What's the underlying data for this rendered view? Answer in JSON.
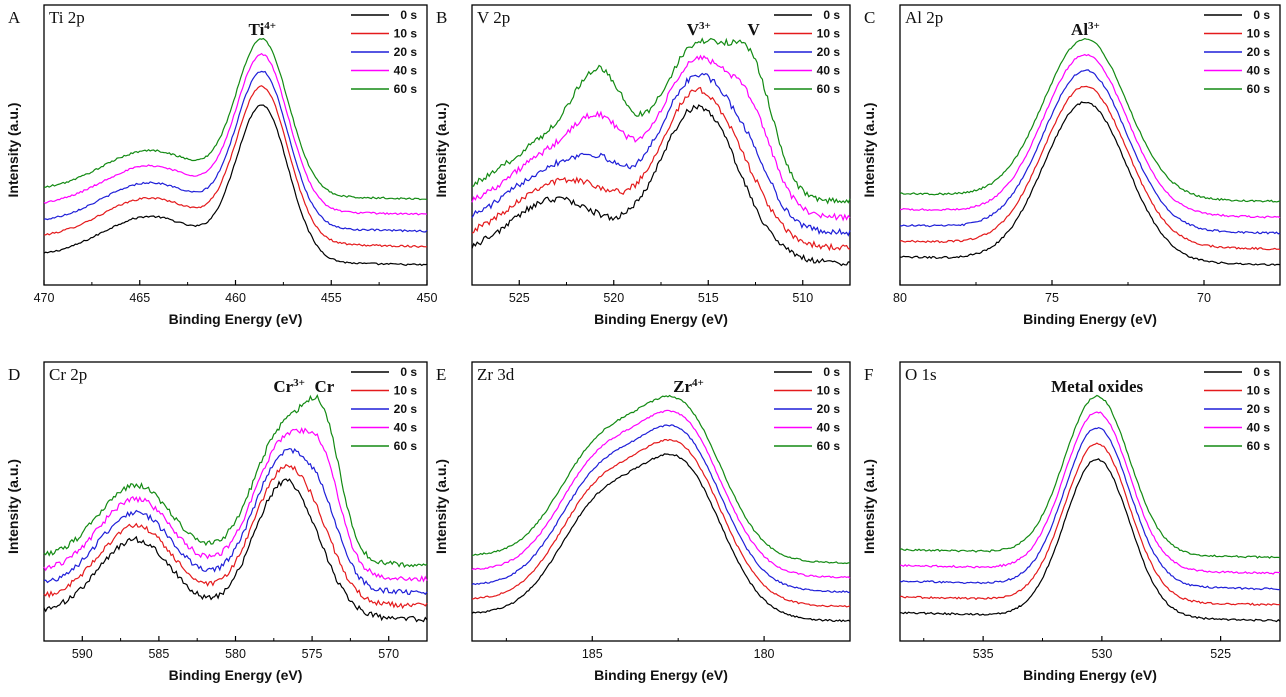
{
  "colors": {
    "0 s": "#000000",
    "10 s": "#e41a1c",
    "20 s": "#1f1fd8",
    "40 s": "#ff00ff",
    "60 s": "#138a13",
    "frame": "#000000",
    "background": "#ffffff"
  },
  "chart_data": [
    {
      "type": "line",
      "panel_letter": "A",
      "title": "Ti 2p",
      "xlabel": "Binding Energy (eV)",
      "ylabel": "Intensity (a.u.)",
      "x_reversed": true,
      "xlim": [
        470,
        450
      ],
      "x_ticks": [
        470,
        465,
        460,
        455,
        450
      ],
      "peak_labels": [
        {
          "base": "Ti",
          "sup": "4+",
          "x": 458.6
        }
      ],
      "legend_position": "top-right",
      "legend": [
        "0 s",
        "10 s",
        "20 s",
        "40 s",
        "60 s"
      ],
      "peaks": [
        {
          "center": 464.4,
          "width": 1.6,
          "height": 0.28
        },
        {
          "center": 458.6,
          "width": 0.85,
          "height": 1.0
        }
      ],
      "series": [
        {
          "name": "0 s",
          "offset": 0.0,
          "scale": 1.0
        },
        {
          "name": "10 s",
          "offset": 0.12,
          "scale": 1.0
        },
        {
          "name": "20 s",
          "offset": 0.22,
          "scale": 1.0
        },
        {
          "name": "40 s",
          "offset": 0.33,
          "scale": 1.0
        },
        {
          "name": "60 s",
          "offset": 0.43,
          "scale": 1.0
        }
      ]
    },
    {
      "type": "line",
      "panel_letter": "B",
      "title": "V 2p",
      "xlabel": "Binding Energy (eV)",
      "ylabel": "Intensity (a.u.)",
      "x_reversed": true,
      "xlim": [
        527.5,
        507.5
      ],
      "x_ticks": [
        525,
        520,
        515,
        510
      ],
      "peak_labels": [
        {
          "base": "V",
          "sup": "3+",
          "x": 515.5
        },
        {
          "base": "V",
          "sup": "",
          "x": 512.6
        }
      ],
      "legend_position": "top-right",
      "legend": [
        "0 s",
        "10 s",
        "20 s",
        "40 s",
        "60 s"
      ],
      "peaks": [
        {
          "center": 523.0,
          "width": 1.5,
          "height": 0.38
        },
        {
          "center": 515.5,
          "width": 1.3,
          "height": 1.0
        },
        {
          "center": 512.6,
          "width": 0.7,
          "height": 0.0
        },
        {
          "center": 520.7,
          "width": 0.8,
          "height": 0.0
        }
      ],
      "series": [
        {
          "name": "0 s",
          "offset": 0.0,
          "scale": 1.0,
          "metal": 0.0
        },
        {
          "name": "10 s",
          "offset": 0.1,
          "scale": 1.0,
          "metal": 0.08
        },
        {
          "name": "20 s",
          "offset": 0.2,
          "scale": 1.0,
          "metal": 0.18
        },
        {
          "name": "40 s",
          "offset": 0.3,
          "scale": 1.0,
          "metal": 0.35
        },
        {
          "name": "60 s",
          "offset": 0.4,
          "scale": 1.0,
          "metal": 0.55
        }
      ]
    },
    {
      "type": "line",
      "panel_letter": "C",
      "title": "Al 2p",
      "xlabel": "Binding Energy (eV)",
      "ylabel": "Intensity (a.u.)",
      "x_reversed": true,
      "xlim": [
        80,
        67.5
      ],
      "x_ticks": [
        80,
        75,
        70
      ],
      "peak_labels": [
        {
          "base": "Al",
          "sup": "3+",
          "x": 73.9
        }
      ],
      "legend_position": "top-right",
      "legend": [
        "0 s",
        "10 s",
        "20 s",
        "40 s",
        "60 s"
      ],
      "peaks": [
        {
          "center": 73.9,
          "width": 0.85,
          "height": 1.0
        }
      ],
      "series": [
        {
          "name": "0 s",
          "offset": 0.0,
          "scale": 1.0
        },
        {
          "name": "10 s",
          "offset": 0.1,
          "scale": 1.0
        },
        {
          "name": "20 s",
          "offset": 0.2,
          "scale": 1.0
        },
        {
          "name": "40 s",
          "offset": 0.3,
          "scale": 1.0
        },
        {
          "name": "60 s",
          "offset": 0.4,
          "scale": 1.0
        }
      ]
    },
    {
      "type": "line",
      "panel_letter": "D",
      "title": "Cr 2p",
      "xlabel": "Binding Energy (eV)",
      "ylabel": "Intensity (a.u.)",
      "x_reversed": true,
      "xlim": [
        592.5,
        567.5
      ],
      "x_ticks": [
        590,
        585,
        580,
        575,
        570
      ],
      "peak_labels": [
        {
          "base": "Cr",
          "sup": "3+",
          "x": 576.5
        },
        {
          "base": "Cr",
          "sup": "",
          "x": 574.2
        }
      ],
      "legend_position": "top-right",
      "legend": [
        "0 s",
        "10 s",
        "20 s",
        "40 s",
        "60 s"
      ],
      "peaks": [
        {
          "center": 586.5,
          "width": 1.5,
          "height": 0.55
        },
        {
          "center": 576.7,
          "width": 1.3,
          "height": 1.0
        },
        {
          "center": 574.2,
          "width": 0.7,
          "height": 0.0
        }
      ],
      "series": [
        {
          "name": "0 s",
          "offset": 0.0,
          "scale": 1.0,
          "metal": 0.0
        },
        {
          "name": "10 s",
          "offset": 0.1,
          "scale": 1.0,
          "metal": 0.1
        },
        {
          "name": "20 s",
          "offset": 0.2,
          "scale": 1.0,
          "metal": 0.25
        },
        {
          "name": "40 s",
          "offset": 0.3,
          "scale": 1.0,
          "metal": 0.45
        },
        {
          "name": "60 s",
          "offset": 0.4,
          "scale": 1.0,
          "metal": 0.65
        }
      ]
    },
    {
      "type": "line",
      "panel_letter": "E",
      "title": "Zr 3d",
      "xlabel": "Binding Energy (eV)",
      "ylabel": "Intensity (a.u.)",
      "x_reversed": true,
      "xlim": [
        188.5,
        177.5
      ],
      "x_ticks": [
        185,
        180
      ],
      "peak_labels": [
        {
          "base": "Zr",
          "sup": "4+",
          "x": 182.2
        }
      ],
      "legend_position": "top-right",
      "legend": [
        "0 s",
        "10 s",
        "20 s",
        "40 s",
        "60 s"
      ],
      "peaks": [
        {
          "center": 184.8,
          "width": 0.75,
          "height": 0.72
        },
        {
          "center": 182.4,
          "width": 0.75,
          "height": 1.0
        }
      ],
      "series": [
        {
          "name": "0 s",
          "offset": 0.0,
          "scale": 1.0
        },
        {
          "name": "10 s",
          "offset": 0.1,
          "scale": 1.0
        },
        {
          "name": "20 s",
          "offset": 0.2,
          "scale": 1.0
        },
        {
          "name": "40 s",
          "offset": 0.3,
          "scale": 1.0
        },
        {
          "name": "60 s",
          "offset": 0.4,
          "scale": 1.0
        }
      ]
    },
    {
      "type": "line",
      "panel_letter": "F",
      "title": "O 1s",
      "xlabel": "Binding Energy (eV)",
      "ylabel": "Intensity (a.u.)",
      "x_reversed": true,
      "xlim": [
        538.5,
        522.5
      ],
      "x_ticks": [
        535,
        530,
        525
      ],
      "peak_labels": [
        {
          "base": "Metal oxides",
          "sup": "",
          "x": 530.2
        }
      ],
      "legend_position": "top-right",
      "legend": [
        "0 s",
        "10 s",
        "20 s",
        "40 s",
        "60 s"
      ],
      "peaks": [
        {
          "center": 530.2,
          "width": 0.85,
          "height": 1.0
        }
      ],
      "series": [
        {
          "name": "0 s",
          "offset": 0.0,
          "scale": 1.0
        },
        {
          "name": "10 s",
          "offset": 0.1,
          "scale": 1.0
        },
        {
          "name": "20 s",
          "offset": 0.2,
          "scale": 1.0
        },
        {
          "name": "40 s",
          "offset": 0.3,
          "scale": 1.0
        },
        {
          "name": "60 s",
          "offset": 0.4,
          "scale": 1.0
        }
      ]
    }
  ]
}
